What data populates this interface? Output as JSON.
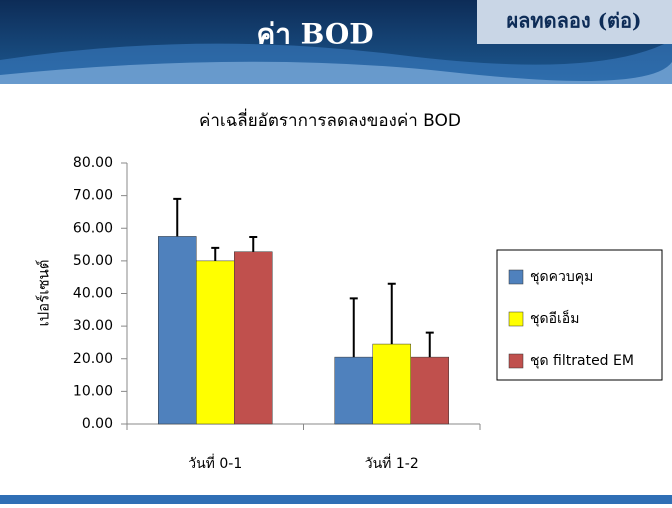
{
  "slide_title": "ค่า BOD",
  "slide_tag": "ผลทดลอง (ต่อ)",
  "chart_data": {
    "type": "bar",
    "title": "ค่าเฉลี่ยอัตราการลดลงของค่า BOD",
    "y_label": "เปอร์เซนต์",
    "categories": [
      "วันที่ 0-1",
      "วันที่ 1-2"
    ],
    "series": [
      {
        "name": "ชุดควบคุม",
        "color": "#4f81bd",
        "values": [
          57.5,
          20.5
        ],
        "errors": [
          11.5,
          18
        ]
      },
      {
        "name": "ชุดอีเอ็ม",
        "color": "#ffff00",
        "values": [
          50,
          24.5
        ],
        "errors": [
          4,
          18.5
        ]
      },
      {
        "name": "ชุด filtrated EM",
        "color": "#c0504d",
        "values": [
          52.8,
          20.5
        ],
        "errors": [
          4.5,
          7.5
        ]
      }
    ],
    "ylim": [
      0,
      80
    ],
    "yticks": [
      {
        "value": 0,
        "label": "0.00"
      },
      {
        "value": 10,
        "label": "10.00"
      },
      {
        "value": 20,
        "label": "20.00"
      },
      {
        "value": 30,
        "label": "30.00"
      },
      {
        "value": 40,
        "label": "40.00"
      },
      {
        "value": 50,
        "label": "50.00"
      },
      {
        "value": 60,
        "label": "60.00"
      },
      {
        "value": 70,
        "label": "70.00"
      },
      {
        "value": 80,
        "label": "80.00"
      }
    ],
    "legend": "right",
    "grid": false
  }
}
